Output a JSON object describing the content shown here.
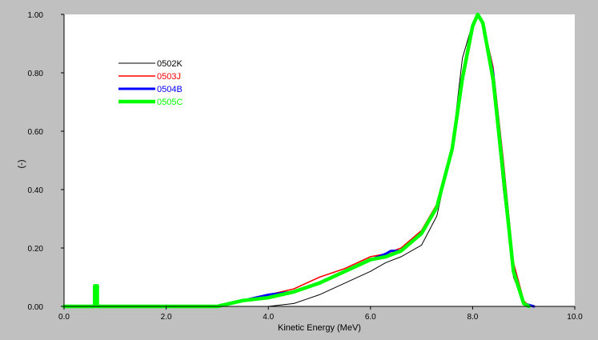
{
  "chart_data": {
    "type": "line",
    "title": "",
    "xlabel": "Kinetic Energy (MeV)",
    "ylabel": "(-)",
    "xlim": [
      0.0,
      10.0
    ],
    "ylim": [
      0.0,
      1.0
    ],
    "x_ticks": [
      "0.0",
      "2.0",
      "4.0",
      "6.0",
      "8.0",
      "10.0"
    ],
    "y_ticks": [
      "0.00",
      "0.20",
      "0.40",
      "0.60",
      "0.80",
      "1.00"
    ],
    "grid": false,
    "legend": "top-left",
    "background": "#c0c0c0",
    "plot_background": "#ffffff",
    "series": [
      {
        "name": "0502K",
        "color": "#000000",
        "x": [
          0,
          3.0,
          3.5,
          4.0,
          4.5,
          5.0,
          5.5,
          6.0,
          6.3,
          6.6,
          7.0,
          7.3,
          7.6,
          7.8,
          8.0,
          8.1,
          8.2,
          8.4,
          8.6,
          8.8,
          9.0,
          9.1
        ],
        "y": [
          0,
          0,
          0,
          0,
          0.01,
          0.04,
          0.08,
          0.12,
          0.15,
          0.17,
          0.21,
          0.31,
          0.55,
          0.85,
          0.97,
          1.0,
          0.96,
          0.75,
          0.4,
          0.1,
          0.01,
          0
        ]
      },
      {
        "name": "0503J",
        "color": "#ff0000",
        "x": [
          0,
          3.0,
          3.5,
          4.0,
          4.5,
          5.0,
          5.5,
          6.0,
          6.3,
          6.6,
          7.0,
          7.3,
          7.6,
          7.8,
          8.0,
          8.1,
          8.2,
          8.4,
          8.6,
          8.8,
          9.0,
          9.1
        ],
        "y": [
          0,
          0,
          0.02,
          0.04,
          0.06,
          0.1,
          0.13,
          0.17,
          0.18,
          0.2,
          0.26,
          0.35,
          0.55,
          0.8,
          0.97,
          1.0,
          0.97,
          0.82,
          0.5,
          0.15,
          0.02,
          0
        ]
      },
      {
        "name": "0504B",
        "color": "#0000ff",
        "x": [
          0,
          0.6,
          0.6,
          0.65,
          0.65,
          3.0,
          3.5,
          4.0,
          4.5,
          5.0,
          5.5,
          6.0,
          6.3,
          6.4,
          6.6,
          7.0,
          7.3,
          7.6,
          7.8,
          8.0,
          8.1,
          8.2,
          8.4,
          8.6,
          8.8,
          9.0,
          9.2
        ],
        "y": [
          0,
          0,
          0.07,
          0.07,
          0,
          0,
          0.02,
          0.04,
          0.05,
          0.08,
          0.12,
          0.16,
          0.18,
          0.19,
          0.19,
          0.25,
          0.34,
          0.54,
          0.78,
          0.96,
          1.0,
          0.97,
          0.8,
          0.47,
          0.13,
          0.01,
          0
        ]
      },
      {
        "name": "0505C",
        "color": "#00ff00",
        "x": [
          0,
          0.6,
          0.6,
          0.65,
          0.65,
          3.0,
          3.5,
          4.0,
          4.5,
          5.0,
          5.5,
          6.0,
          6.3,
          6.6,
          7.0,
          7.3,
          7.6,
          7.8,
          8.0,
          8.1,
          8.2,
          8.4,
          8.6,
          8.8,
          9.0,
          9.1
        ],
        "y": [
          0,
          0,
          0.07,
          0.07,
          0,
          0,
          0.02,
          0.03,
          0.05,
          0.08,
          0.12,
          0.16,
          0.17,
          0.19,
          0.25,
          0.34,
          0.54,
          0.78,
          0.96,
          1.0,
          0.97,
          0.78,
          0.45,
          0.12,
          0.01,
          0
        ]
      }
    ]
  }
}
